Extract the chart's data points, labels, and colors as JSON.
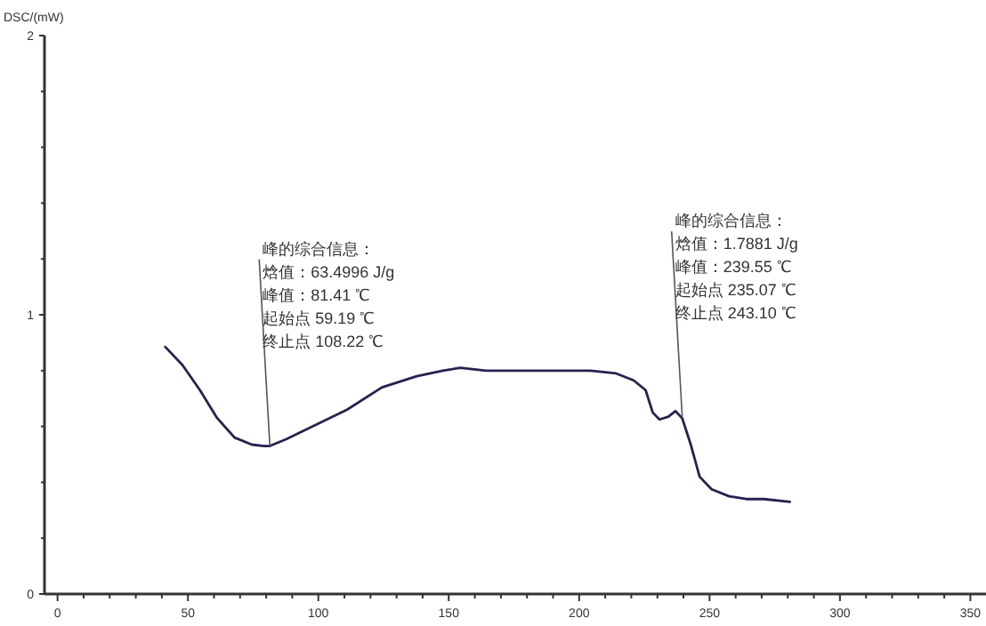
{
  "chart_data": {
    "type": "line",
    "ylabel": "DSC/(mW)",
    "xlim": [
      -5,
      356
    ],
    "ylim": [
      0,
      2
    ],
    "xticks": [
      0,
      50,
      100,
      150,
      200,
      250,
      300,
      350
    ],
    "yticks": [
      0,
      1,
      2
    ],
    "grid": false,
    "marker": "none",
    "line_style": "solid",
    "series": [
      {
        "color": "#23234f",
        "x": [
          41.3,
          47.9,
          54.6,
          61.2,
          67.9,
          74.5,
          79.2,
          81.4,
          87.8,
          97.8,
          111,
          124.4,
          137.7,
          147.7,
          154.4,
          164.3,
          177.6,
          204.3,
          214.2,
          220.9,
          225.5,
          228.2,
          230.8,
          234.2,
          236.9,
          239.5,
          242.8,
          246.2,
          250.8,
          257.5,
          264.1,
          270.8,
          280.8
        ],
        "values": [
          0.885,
          0.82,
          0.73,
          0.63,
          0.56,
          0.535,
          0.53,
          0.53,
          0.555,
          0.6,
          0.66,
          0.74,
          0.78,
          0.8,
          0.81,
          0.8,
          0.8,
          0.8,
          0.79,
          0.765,
          0.73,
          0.65,
          0.625,
          0.635,
          0.655,
          0.63,
          0.535,
          0.42,
          0.375,
          0.35,
          0.34,
          0.34,
          0.33
        ]
      }
    ],
    "annotations": [
      {
        "text": "峰的综合信息：",
        "x": 81.41,
        "y": 0.53
      },
      "焓值：63.4996 J/g",
      "峰值：81.41 ℃",
      "起始点 59.19 ℃",
      "终止点 108.22 ℃",
      {
        "text": "峰的综合信息：",
        "x": 239.55,
        "y": 0.63
      },
      "焓值：1.7881 J/g",
      "峰值：239.55 ℃",
      "起始点 235.07 ℃",
      "终止点 243.10 ℃"
    ]
  }
}
